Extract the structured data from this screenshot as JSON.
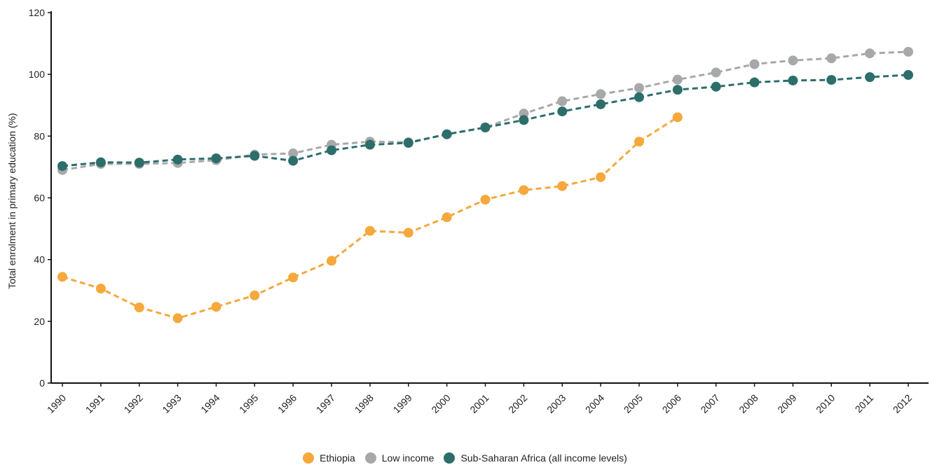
{
  "chart_data": {
    "type": "line",
    "title": "",
    "xlabel": "",
    "ylabel": "Total enrolment in primary education (%)",
    "ylim": [
      0,
      120
    ],
    "yticks": [
      0,
      20,
      40,
      60,
      80,
      100,
      120
    ],
    "grid": false,
    "legend_position": "bottom-center",
    "line_style": "dashed",
    "categories": [
      "1990",
      "1991",
      "1992",
      "1993",
      "1994",
      "1995",
      "1996",
      "1997",
      "1998",
      "1999",
      "2000",
      "2001",
      "2002",
      "2003",
      "2004",
      "2005",
      "2006",
      "2007",
      "2008",
      "2009",
      "2010",
      "2011",
      "2012"
    ],
    "series": [
      {
        "name": "Low income",
        "color": "#a7a8aa",
        "values": [
          69,
          71,
          71,
          71.3,
          72.2,
          74,
          74.4,
          77.2,
          78.2,
          78,
          80.6,
          82.8,
          87.3,
          91.3,
          93.6,
          95.6,
          98.3,
          100.6,
          103.3,
          104.5,
          105.2,
          106.8,
          107.3
        ]
      },
      {
        "name": "Sub-Saharan Africa (all income levels)",
        "color": "#2c6e6a",
        "values": [
          70.3,
          71.5,
          71.4,
          72.4,
          72.8,
          73.6,
          72,
          75.4,
          77.2,
          77.8,
          80.6,
          82.8,
          85.2,
          88,
          90.3,
          92.6,
          95,
          96,
          97.4,
          98,
          98.2,
          99.1,
          99.8
        ]
      },
      {
        "name": "Ethiopia",
        "color": "#f5a83c",
        "values": [
          34.4,
          30.6,
          24.5,
          21,
          24.7,
          28.4,
          34.2,
          39.6,
          49.3,
          48.7,
          53.7,
          59.4,
          62.5,
          63.8,
          66.7,
          78.2,
          86.1,
          null,
          null,
          null,
          null,
          null,
          null
        ]
      }
    ],
    "legend": [
      {
        "label": "Ethiopia",
        "color": "#f5a83c"
      },
      {
        "label": "Low income",
        "color": "#a7a8aa"
      },
      {
        "label": "Sub-Saharan Africa (all income levels)",
        "color": "#2c6e6a"
      }
    ]
  }
}
